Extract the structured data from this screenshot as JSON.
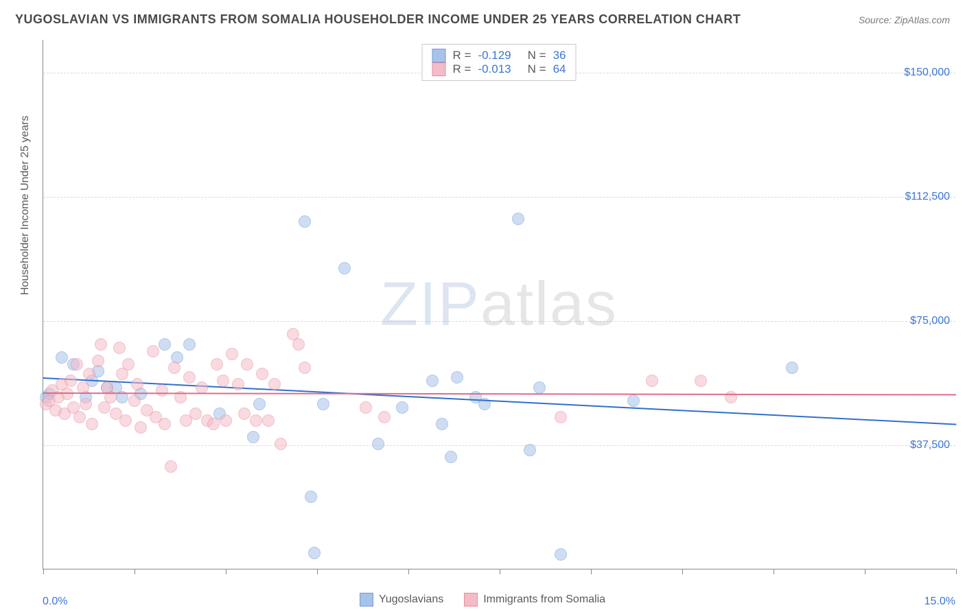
{
  "title": "YUGOSLAVIAN VS IMMIGRANTS FROM SOMALIA HOUSEHOLDER INCOME UNDER 25 YEARS CORRELATION CHART",
  "source": "Source: ZipAtlas.com",
  "watermark": {
    "part1": "ZIP",
    "part2": "atlas"
  },
  "chart": {
    "type": "scatter",
    "y_axis_label": "Householder Income Under 25 years",
    "x_min_label": "0.0%",
    "x_max_label": "15.0%",
    "xlim": [
      0,
      15
    ],
    "ylim": [
      0,
      160000
    ],
    "y_gridlines": [
      37500,
      75000,
      112500,
      150000
    ],
    "y_tick_labels": [
      "$37,500",
      "$75,000",
      "$112,500",
      "$150,000"
    ],
    "x_ticks": [
      0,
      1.5,
      3.0,
      4.5,
      6.0,
      7.5,
      9.0,
      10.5,
      12.0,
      13.5,
      15.0
    ],
    "background_color": "#ffffff",
    "grid_color": "#d9d9d9",
    "axis_label_color": "#5a5a5a",
    "tick_label_color": "#3b76d6",
    "marker_radius": 9,
    "marker_opacity": 0.55,
    "series": [
      {
        "name": "Yugoslavians",
        "color_fill": "#a8c3ea",
        "color_stroke": "#6f9ad6",
        "line_color": "#2f6fd0",
        "R": "-0.129",
        "N": "36",
        "trend": {
          "y_at_x0": 58000,
          "y_at_xmax": 44000
        },
        "points": [
          {
            "x": 0.05,
            "y": 52000
          },
          {
            "x": 0.1,
            "y": 53000
          },
          {
            "x": 0.3,
            "y": 64000
          },
          {
            "x": 0.5,
            "y": 62000
          },
          {
            "x": 0.7,
            "y": 52000
          },
          {
            "x": 0.8,
            "y": 57000
          },
          {
            "x": 0.9,
            "y": 60000
          },
          {
            "x": 1.05,
            "y": 55000
          },
          {
            "x": 1.2,
            "y": 55000
          },
          {
            "x": 1.3,
            "y": 52000
          },
          {
            "x": 1.6,
            "y": 53000
          },
          {
            "x": 2.0,
            "y": 68000
          },
          {
            "x": 2.2,
            "y": 64000
          },
          {
            "x": 2.4,
            "y": 68000
          },
          {
            "x": 3.45,
            "y": 40000
          },
          {
            "x": 3.55,
            "y": 50000
          },
          {
            "x": 4.3,
            "y": 105000
          },
          {
            "x": 4.4,
            "y": 22000
          },
          {
            "x": 4.45,
            "y": 5000
          },
          {
            "x": 4.6,
            "y": 50000
          },
          {
            "x": 4.95,
            "y": 91000
          },
          {
            "x": 5.5,
            "y": 38000
          },
          {
            "x": 5.9,
            "y": 49000
          },
          {
            "x": 6.4,
            "y": 57000
          },
          {
            "x": 6.55,
            "y": 44000
          },
          {
            "x": 6.7,
            "y": 34000
          },
          {
            "x": 6.8,
            "y": 58000
          },
          {
            "x": 7.25,
            "y": 50000
          },
          {
            "x": 7.8,
            "y": 106000
          },
          {
            "x": 8.0,
            "y": 36000
          },
          {
            "x": 8.15,
            "y": 55000
          },
          {
            "x": 8.5,
            "y": 4500
          },
          {
            "x": 9.7,
            "y": 51000
          },
          {
            "x": 12.3,
            "y": 61000
          },
          {
            "x": 7.1,
            "y": 52000
          },
          {
            "x": 2.9,
            "y": 47000
          }
        ]
      },
      {
        "name": "Immigrants from Somalia",
        "color_fill": "#f3bcc7",
        "color_stroke": "#e68ca0",
        "line_color": "#e06b87",
        "R": "-0.013",
        "N": "64",
        "trend": {
          "y_at_x0": 53500,
          "y_at_xmax": 53000
        },
        "points": [
          {
            "x": 0.05,
            "y": 50000
          },
          {
            "x": 0.1,
            "y": 51000
          },
          {
            "x": 0.15,
            "y": 54000
          },
          {
            "x": 0.2,
            "y": 48000
          },
          {
            "x": 0.25,
            "y": 52000
          },
          {
            "x": 0.3,
            "y": 56000
          },
          {
            "x": 0.35,
            "y": 47000
          },
          {
            "x": 0.4,
            "y": 53000
          },
          {
            "x": 0.45,
            "y": 57000
          },
          {
            "x": 0.5,
            "y": 49000
          },
          {
            "x": 0.55,
            "y": 62000
          },
          {
            "x": 0.6,
            "y": 46000
          },
          {
            "x": 0.65,
            "y": 55000
          },
          {
            "x": 0.7,
            "y": 50000
          },
          {
            "x": 0.75,
            "y": 59000
          },
          {
            "x": 0.8,
            "y": 44000
          },
          {
            "x": 0.9,
            "y": 63000
          },
          {
            "x": 0.95,
            "y": 68000
          },
          {
            "x": 1.0,
            "y": 49000
          },
          {
            "x": 1.05,
            "y": 55000
          },
          {
            "x": 1.1,
            "y": 52000
          },
          {
            "x": 1.2,
            "y": 47000
          },
          {
            "x": 1.25,
            "y": 67000
          },
          {
            "x": 1.3,
            "y": 59000
          },
          {
            "x": 1.35,
            "y": 45000
          },
          {
            "x": 1.4,
            "y": 62000
          },
          {
            "x": 1.5,
            "y": 51000
          },
          {
            "x": 1.55,
            "y": 56000
          },
          {
            "x": 1.6,
            "y": 43000
          },
          {
            "x": 1.7,
            "y": 48000
          },
          {
            "x": 1.8,
            "y": 66000
          },
          {
            "x": 1.85,
            "y": 46000
          },
          {
            "x": 1.95,
            "y": 54000
          },
          {
            "x": 2.0,
            "y": 44000
          },
          {
            "x": 2.1,
            "y": 31000
          },
          {
            "x": 2.15,
            "y": 61000
          },
          {
            "x": 2.25,
            "y": 52000
          },
          {
            "x": 2.35,
            "y": 45000
          },
          {
            "x": 2.4,
            "y": 58000
          },
          {
            "x": 2.5,
            "y": 47000
          },
          {
            "x": 2.6,
            "y": 55000
          },
          {
            "x": 2.7,
            "y": 45000
          },
          {
            "x": 2.8,
            "y": 44000
          },
          {
            "x": 2.85,
            "y": 62000
          },
          {
            "x": 2.95,
            "y": 57000
          },
          {
            "x": 3.0,
            "y": 45000
          },
          {
            "x": 3.1,
            "y": 65000
          },
          {
            "x": 3.2,
            "y": 56000
          },
          {
            "x": 3.3,
            "y": 47000
          },
          {
            "x": 3.35,
            "y": 62000
          },
          {
            "x": 3.5,
            "y": 45000
          },
          {
            "x": 3.6,
            "y": 59000
          },
          {
            "x": 3.7,
            "y": 45000
          },
          {
            "x": 3.8,
            "y": 56000
          },
          {
            "x": 3.9,
            "y": 38000
          },
          {
            "x": 4.1,
            "y": 71000
          },
          {
            "x": 4.2,
            "y": 68000
          },
          {
            "x": 4.3,
            "y": 61000
          },
          {
            "x": 5.3,
            "y": 49000
          },
          {
            "x": 5.6,
            "y": 46000
          },
          {
            "x": 8.5,
            "y": 46000
          },
          {
            "x": 10.0,
            "y": 57000
          },
          {
            "x": 10.8,
            "y": 57000
          },
          {
            "x": 11.3,
            "y": 52000
          }
        ]
      }
    ]
  }
}
